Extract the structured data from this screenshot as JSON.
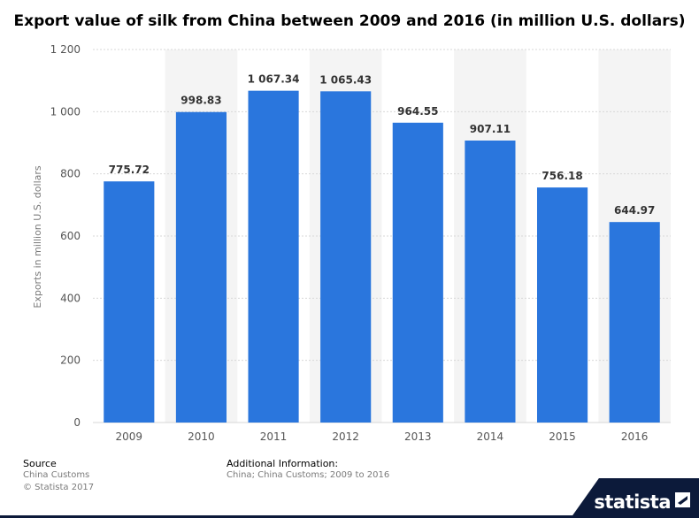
{
  "chart_data": {
    "type": "bar",
    "title": "Export value of silk from China between 2009 and 2016 (in million U.S. dollars)",
    "xlabel": "",
    "ylabel": "Exports in million U.S. dollars",
    "categories": [
      "2009",
      "2010",
      "2011",
      "2012",
      "2013",
      "2014",
      "2015",
      "2016"
    ],
    "values": [
      775.72,
      998.83,
      1067.34,
      1065.43,
      964.55,
      907.11,
      756.18,
      644.97
    ],
    "value_labels": [
      "775.72",
      "998.83",
      "1 067.34",
      "1 065.43",
      "964.55",
      "907.11",
      "756.18",
      "644.97"
    ],
    "ylim": [
      0,
      1200
    ],
    "yticks": [
      0,
      200,
      400,
      600,
      800,
      1000,
      1200
    ],
    "ytick_labels": [
      "0",
      "200",
      "400",
      "600",
      "800",
      "1 000",
      "1 200"
    ],
    "grid": true,
    "bar_color": "#2a76dd"
  },
  "footer": {
    "source_label": "Source",
    "source_line1": "China Customs",
    "source_line2": "© Statista 2017",
    "info_label": "Additional Information:",
    "info_text": "China; China Customs; 2009 to 2016",
    "brand": "statista"
  }
}
